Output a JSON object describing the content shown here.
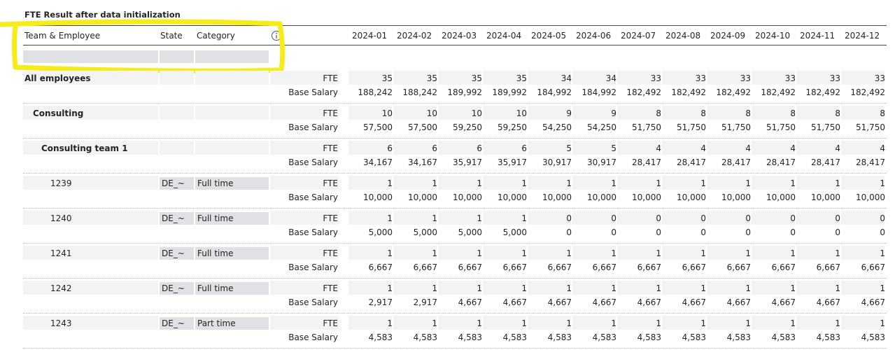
{
  "title": "FTE Result after data initialization",
  "header": {
    "columns": [
      "Team & Employee",
      "State",
      "Category"
    ],
    "months": [
      "2024-01",
      "2024-02",
      "2024-03",
      "2024-04",
      "2024-05",
      "2024-06",
      "2024-07",
      "2024-08",
      "2024-09",
      "2024-10",
      "2024-11",
      "2024-12"
    ]
  },
  "rows": [
    {
      "label": "All employees",
      "measures": [
        {
          "name": "FTE",
          "values": [
            "35",
            "35",
            "35",
            "35",
            "34",
            "34",
            "33",
            "33",
            "33",
            "33",
            "33",
            "33"
          ]
        },
        {
          "name": "Base Salary",
          "values": [
            "188,242",
            "188,242",
            "189,992",
            "189,992",
            "184,992",
            "184,992",
            "182,492",
            "182,492",
            "182,492",
            "182,492",
            "182,492",
            "182,492"
          ]
        }
      ]
    },
    {
      "label": "Consulting",
      "measures": [
        {
          "name": "FTE",
          "values": [
            "10",
            "10",
            "10",
            "10",
            "9",
            "9",
            "8",
            "8",
            "8",
            "8",
            "8",
            "8"
          ]
        },
        {
          "name": "Base Salary",
          "values": [
            "57,500",
            "57,500",
            "59,250",
            "59,250",
            "54,250",
            "54,250",
            "51,750",
            "51,750",
            "51,750",
            "51,750",
            "51,750",
            "51,750"
          ]
        }
      ]
    },
    {
      "label": "Consulting team 1",
      "measures": [
        {
          "name": "FTE",
          "values": [
            "6",
            "6",
            "6",
            "6",
            "5",
            "5",
            "4",
            "4",
            "4",
            "4",
            "4",
            "4"
          ]
        },
        {
          "name": "Base Salary",
          "values": [
            "34,167",
            "34,167",
            "35,917",
            "35,917",
            "30,917",
            "30,917",
            "28,417",
            "28,417",
            "28,417",
            "28,417",
            "28,417",
            "28,417"
          ]
        }
      ]
    },
    {
      "label": "1239",
      "state": "DE_~",
      "category": "Full time",
      "measures": [
        {
          "name": "FTE",
          "values": [
            "1",
            "1",
            "1",
            "1",
            "1",
            "1",
            "1",
            "1",
            "1",
            "1",
            "1",
            "1"
          ]
        },
        {
          "name": "Base Salary",
          "values": [
            "10,000",
            "10,000",
            "10,000",
            "10,000",
            "10,000",
            "10,000",
            "10,000",
            "10,000",
            "10,000",
            "10,000",
            "10,000",
            "10,000"
          ]
        }
      ]
    },
    {
      "label": "1240",
      "state": "DE_~",
      "category": "Full time",
      "measures": [
        {
          "name": "FTE",
          "values": [
            "1",
            "1",
            "1",
            "1",
            "0",
            "0",
            "0",
            "0",
            "0",
            "0",
            "0",
            "0"
          ]
        },
        {
          "name": "Base Salary",
          "values": [
            "5,000",
            "5,000",
            "5,000",
            "5,000",
            "0",
            "0",
            "0",
            "0",
            "0",
            "0",
            "0",
            "0"
          ]
        }
      ]
    },
    {
      "label": "1241",
      "state": "DE_~",
      "category": "Full time",
      "measures": [
        {
          "name": "FTE",
          "values": [
            "1",
            "1",
            "1",
            "1",
            "1",
            "1",
            "1",
            "1",
            "1",
            "1",
            "1",
            "1"
          ]
        },
        {
          "name": "Base Salary",
          "values": [
            "6,667",
            "6,667",
            "6,667",
            "6,667",
            "6,667",
            "6,667",
            "6,667",
            "6,667",
            "6,667",
            "6,667",
            "6,667",
            "6,667"
          ]
        }
      ]
    },
    {
      "label": "1242",
      "state": "DE_~",
      "category": "Full time",
      "measures": [
        {
          "name": "FTE",
          "values": [
            "1",
            "1",
            "1",
            "1",
            "1",
            "1",
            "1",
            "1",
            "1",
            "1",
            "1",
            "1"
          ]
        },
        {
          "name": "Base Salary",
          "values": [
            "2,917",
            "2,917",
            "4,667",
            "4,667",
            "4,667",
            "4,667",
            "4,667",
            "4,667",
            "4,667",
            "4,667",
            "4,667",
            "4,667"
          ]
        }
      ]
    },
    {
      "label": "1243",
      "state": "DE_~",
      "category": "Part time",
      "measures": [
        {
          "name": "FTE",
          "values": [
            "1",
            "1",
            "1",
            "1",
            "1",
            "1",
            "1",
            "1",
            "1",
            "1",
            "1",
            "1"
          ]
        },
        {
          "name": "Base Salary",
          "values": [
            "4,583",
            "4,583",
            "4,583",
            "4,583",
            "4,583",
            "4,583",
            "4,583",
            "4,583",
            "4,583",
            "4,583",
            "4,583",
            "4,583"
          ]
        }
      ]
    }
  ]
}
